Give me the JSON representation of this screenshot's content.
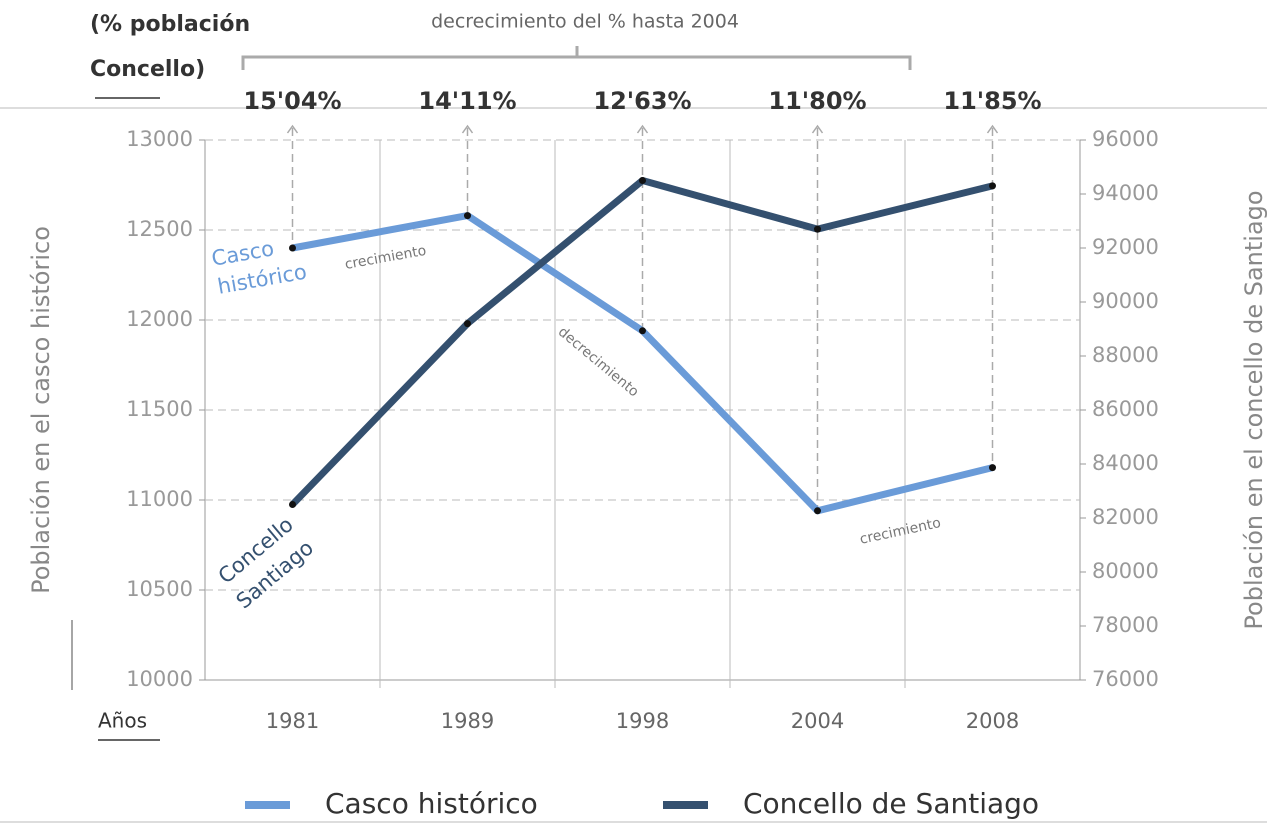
{
  "chart_data": {
    "type": "line",
    "top_note": [
      "(% población",
      "Concello)"
    ],
    "bracket_label": "decrecimiento del % hasta 2004",
    "percent_labels": [
      "15'04%",
      "14'11%",
      "12'63%",
      "11'80%",
      "11'85%"
    ],
    "x_label": "Años",
    "y_label": "Población en el casco histórico",
    "y2_label": "Población en el concello de Santiago",
    "categories": [
      "1981",
      "1989",
      "1998",
      "2004",
      "2008"
    ],
    "series": [
      {
        "name": "Casco histórico",
        "color": "#6a9bd8",
        "values": [
          12400,
          12580,
          11940,
          10940,
          11180
        ]
      },
      {
        "name": "Concello de Santiago",
        "color": "#34506f",
        "axis": "y2",
        "values": [
          82500,
          89200,
          94500,
          92700,
          94300
        ]
      }
    ],
    "line_labels": [
      [
        "Casco",
        "histórico"
      ],
      [
        "Concello",
        "Santiago"
      ]
    ],
    "segment_labels": [
      "crecimiento",
      "decrecimiento",
      "crecimiento"
    ],
    "ylim": [
      10000,
      13000
    ],
    "yticks": [
      10000,
      10500,
      11000,
      11500,
      12000,
      12500,
      13000
    ],
    "y2lim": [
      76000,
      96000
    ],
    "y2ticks": [
      76000,
      78000,
      80000,
      82000,
      84000,
      86000,
      88000,
      90000,
      92000,
      94000,
      96000
    ],
    "grid": true,
    "legend": "bottom"
  }
}
